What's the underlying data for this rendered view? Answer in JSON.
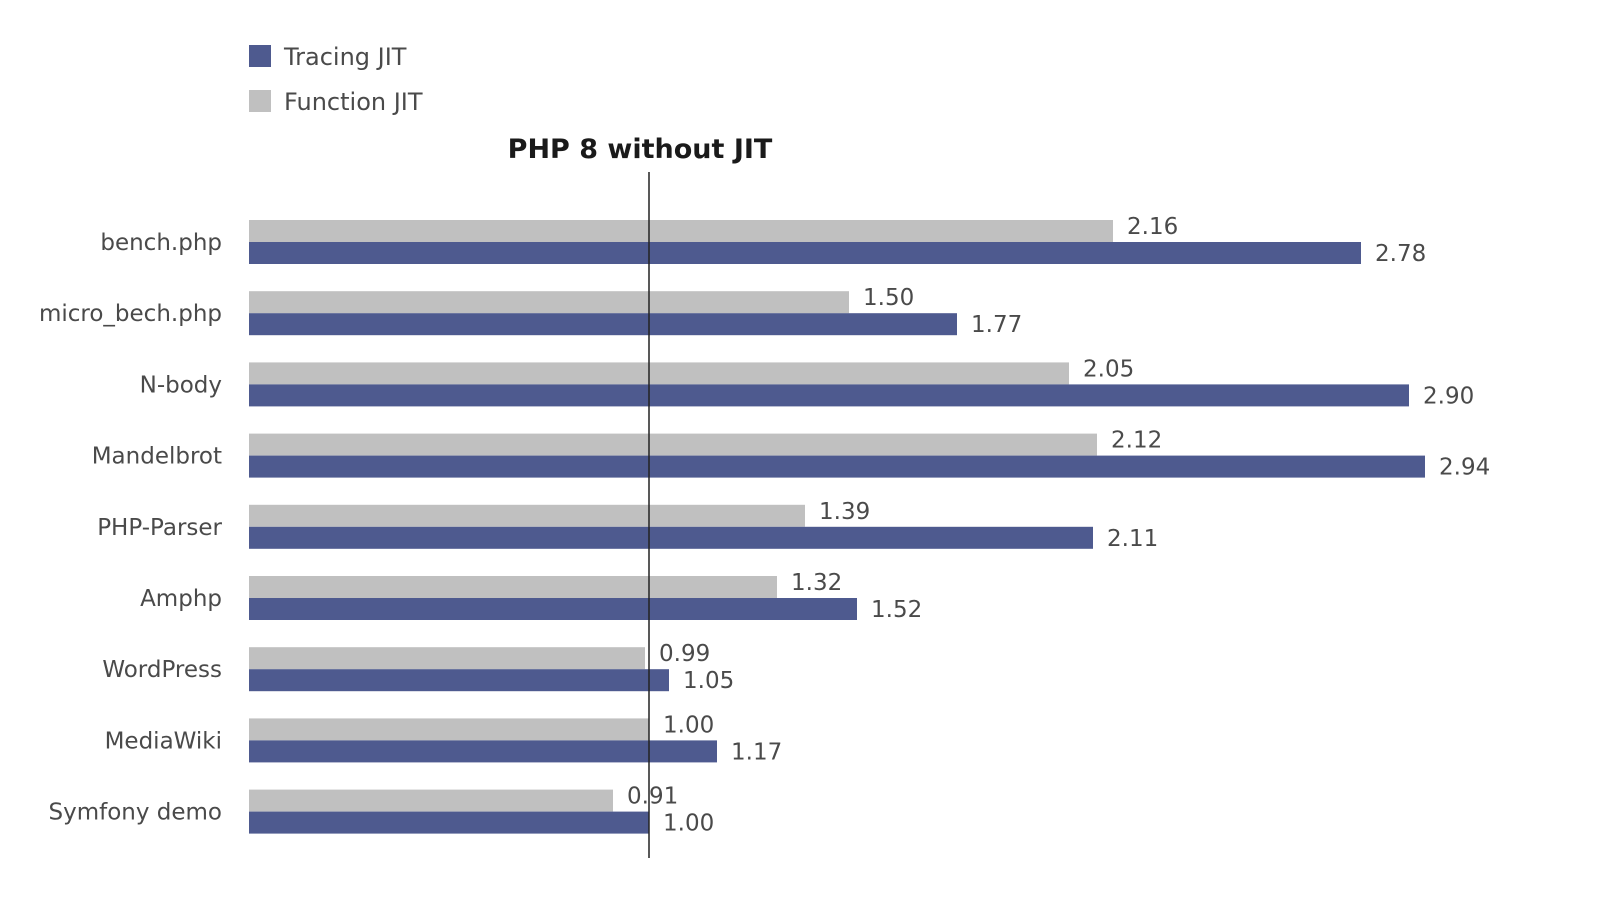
{
  "chart_data": {
    "type": "bar",
    "orientation": "horizontal",
    "categories": [
      "bench.php",
      "micro_bech.php",
      "N-body",
      "Mandelbrot",
      "PHP-Parser",
      "Amphp",
      "WordPress",
      "MediaWiki",
      "Symfony demo"
    ],
    "series": [
      {
        "name": "Function JIT",
        "color": "#c0c0c0",
        "values": [
          2.16,
          1.5,
          2.05,
          2.12,
          1.39,
          1.32,
          0.99,
          1.0,
          0.91
        ],
        "labels": [
          "2.16",
          "1.50",
          "2.05",
          "2.12",
          "1.39",
          "1.32",
          "0.99",
          "1.00",
          "0.91"
        ]
      },
      {
        "name": "Tracing JIT",
        "color": "#4e5a8f",
        "values": [
          2.78,
          1.77,
          2.9,
          2.94,
          2.11,
          1.52,
          1.05,
          1.17,
          1.0
        ],
        "labels": [
          "2.78",
          "1.77",
          "2.90",
          "2.94",
          "2.11",
          "1.52",
          "1.05",
          "1.17",
          "1.00"
        ]
      }
    ],
    "legend": [
      "Tracing JIT",
      "Function JIT"
    ],
    "reference_line": {
      "value": 1.0,
      "label": "PHP 8 without JIT"
    },
    "xlim": [
      0,
      3.0
    ],
    "grid": false,
    "legend_position": "top-left"
  }
}
